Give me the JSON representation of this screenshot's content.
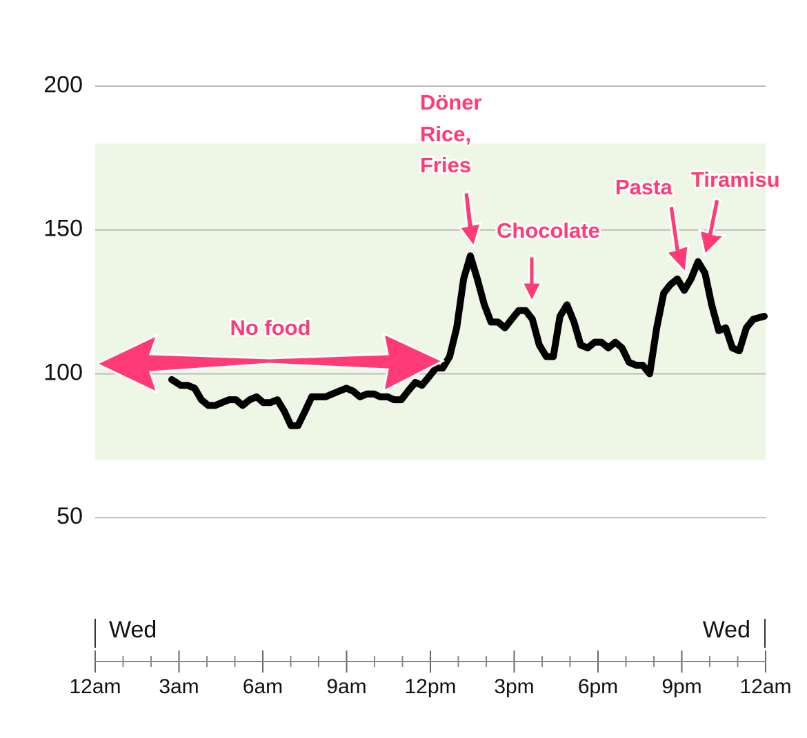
{
  "chart_data": {
    "type": "line",
    "x": [
      2.74,
      3.06,
      3.31,
      3.56,
      3.8,
      4.05,
      4.3,
      4.54,
      4.79,
      5.04,
      5.28,
      5.53,
      5.78,
      6.02,
      6.27,
      6.52,
      6.77,
      7.01,
      7.26,
      7.51,
      7.75,
      8.0,
      8.25,
      8.49,
      8.74,
      8.99,
      9.23,
      9.48,
      9.73,
      9.98,
      10.2,
      10.47,
      10.7,
      10.96,
      11.2,
      11.46,
      11.7,
      11.95,
      12.2,
      12.44,
      12.69,
      12.94,
      13.19,
      13.43,
      13.68,
      13.93,
      14.17,
      14.42,
      14.67,
      14.91,
      15.16,
      15.41,
      15.65,
      15.9,
      16.15,
      16.4,
      16.64,
      16.89,
      17.14,
      17.38,
      17.63,
      17.88,
      18.12,
      18.37,
      18.62,
      18.86,
      19.11,
      19.36,
      19.6,
      19.85,
      20.1,
      20.35,
      20.59,
      20.84,
      21.09,
      21.33,
      21.58,
      21.83,
      22.07,
      22.32,
      22.57,
      22.81,
      23.06,
      23.31,
      23.56,
      23.95
    ],
    "series": [
      {
        "color": "#000000",
        "values": [
          98,
          96,
          96,
          95,
          91,
          89,
          89,
          90,
          91,
          91,
          89,
          91,
          92,
          90,
          90,
          91,
          87,
          82,
          82,
          87,
          92,
          92,
          92,
          93,
          94,
          95,
          94,
          92,
          93,
          93,
          92,
          92,
          91,
          91,
          94,
          97,
          96,
          99,
          102,
          102,
          106,
          116,
          133,
          141,
          133,
          124,
          118,
          118,
          116,
          119,
          122,
          122,
          119,
          110,
          106,
          106,
          120,
          124,
          118,
          110,
          109,
          111,
          111,
          109,
          111,
          109,
          104,
          103,
          103,
          100,
          116,
          128,
          131,
          133,
          129,
          133,
          139,
          135,
          124,
          115,
          116,
          109,
          108,
          116,
          119,
          120
        ]
      }
    ],
    "target_range": {
      "values": [
        70,
        180
      ],
      "color": "#eef6e6"
    },
    "xlim": [
      0,
      24
    ],
    "ylim": [
      30,
      210
    ],
    "yticks": [
      50,
      100,
      150,
      200
    ],
    "xticks": [
      {
        "value": 0,
        "label": "12am"
      },
      {
        "value": 3,
        "label": "3am"
      },
      {
        "value": 6,
        "label": "6am"
      },
      {
        "value": 9,
        "label": "9am"
      },
      {
        "value": 12,
        "label": "12pm"
      },
      {
        "value": 15,
        "label": "3pm"
      },
      {
        "value": 18,
        "label": "6pm"
      },
      {
        "value": 21,
        "label": "9pm"
      },
      {
        "value": 24,
        "label": "12am"
      }
    ],
    "xminorticks": [
      1,
      2,
      4,
      5,
      7,
      8,
      10,
      11,
      13,
      14,
      16,
      17,
      19,
      20,
      22,
      23
    ],
    "day_labels": [
      "Wed",
      "Wed"
    ],
    "grid": true,
    "annotations": [
      {
        "lines": [
          "No food"
        ]
      },
      {
        "lines": [
          "Döner",
          "Rice,",
          "Fries"
        ]
      },
      {
        "lines": [
          "Chocolate"
        ]
      },
      {
        "lines": [
          "Pasta"
        ]
      },
      {
        "lines": [
          "Tiramisu"
        ]
      }
    ]
  }
}
